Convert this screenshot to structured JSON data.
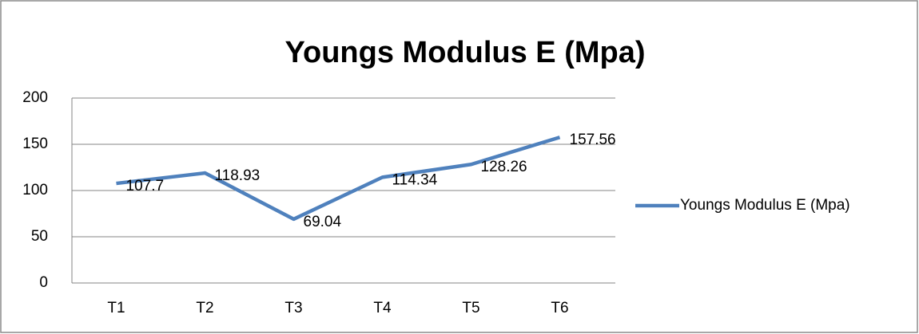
{
  "chart_data": {
    "type": "line",
    "title": "Youngs Modulus  E (Mpa)",
    "categories": [
      "T1",
      "T2",
      "T3",
      "T4",
      "T5",
      "T6"
    ],
    "series": [
      {
        "name": "Youngs Modulus  E (Mpa)",
        "color": "#4f81bd",
        "values": [
          107.7,
          118.93,
          69.04,
          114.34,
          128.26,
          157.56
        ]
      }
    ],
    "ylim": [
      0,
      200
    ],
    "yticks": [
      0,
      50,
      100,
      150,
      200
    ],
    "grid": true,
    "legend": "right",
    "data_labels": true
  }
}
